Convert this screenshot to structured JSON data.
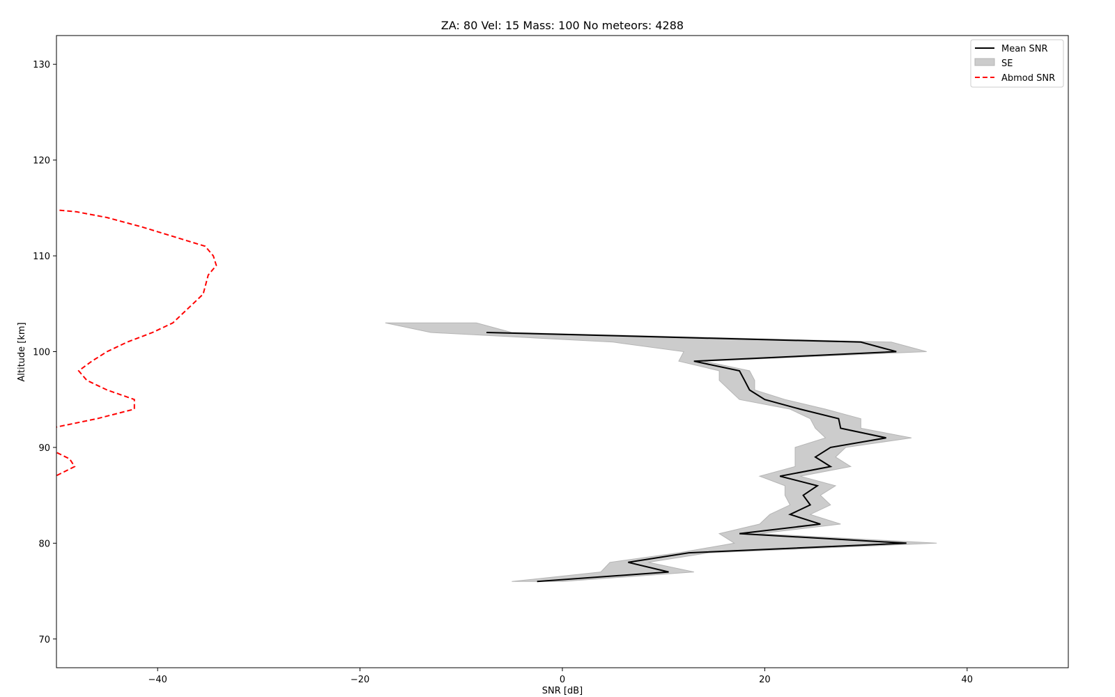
{
  "chart_data": {
    "type": "line",
    "title": "ZA: 80 Vel: 15 Mass: 100 No meteors: 4288",
    "xlabel": "SNR [dB]",
    "ylabel": "Altitude [km]",
    "xlim": [
      -50,
      50
    ],
    "ylim": [
      67,
      133
    ],
    "xticks": [
      -40,
      -20,
      0,
      20,
      40
    ],
    "yticks": [
      70,
      80,
      90,
      100,
      110,
      120,
      130
    ],
    "xtick_labels": [
      "−40",
      "−20",
      "0",
      "20",
      "40"
    ],
    "ytick_labels": [
      "70",
      "80",
      "90",
      "100",
      "110",
      "120",
      "130"
    ],
    "grid": false,
    "legend_position": "upper right",
    "legend": [
      {
        "label": "Mean SNR",
        "style": "line",
        "color": "#000000"
      },
      {
        "label": "SE",
        "style": "patch",
        "color": "#cccccc"
      },
      {
        "label": "Abmod SNR",
        "style": "dashed",
        "color": "#ff0000"
      }
    ],
    "series": [
      {
        "name": "Mean SNR",
        "color": "#000000",
        "points": [
          [
            -2.5,
            76
          ],
          [
            10.5,
            77
          ],
          [
            6.5,
            78
          ],
          [
            12.5,
            79
          ],
          [
            34,
            80
          ],
          [
            17.5,
            81
          ],
          [
            25.5,
            82
          ],
          [
            22.5,
            83
          ],
          [
            24.5,
            84
          ],
          [
            23.8,
            85
          ],
          [
            25.2,
            86
          ],
          [
            21.5,
            87
          ],
          [
            26.5,
            88
          ],
          [
            25,
            89
          ],
          [
            26.5,
            90
          ],
          [
            32,
            91
          ],
          [
            27.5,
            92
          ],
          [
            27.3,
            93
          ],
          [
            23.5,
            94
          ],
          [
            20,
            95
          ],
          [
            18.5,
            96
          ],
          [
            18,
            97
          ],
          [
            17.5,
            98
          ],
          [
            13,
            99
          ],
          [
            33,
            100
          ],
          [
            29.5,
            101
          ],
          [
            -7.5,
            102
          ]
        ]
      },
      {
        "name": "SE",
        "color": "#cccccc",
        "band": [
          [
            76,
            -5,
            0
          ],
          [
            77,
            3.8,
            13
          ],
          [
            78,
            4.7,
            8.5
          ],
          [
            79,
            11.5,
            14.5
          ],
          [
            80,
            17,
            37
          ],
          [
            81,
            15.5,
            19.5
          ],
          [
            82,
            19.5,
            27.5
          ],
          [
            83,
            20.5,
            24.5
          ],
          [
            84,
            22.5,
            26.5
          ],
          [
            85,
            22,
            25.5
          ],
          [
            86,
            22,
            27
          ],
          [
            87,
            19.5,
            23.5
          ],
          [
            88,
            23,
            28.5
          ],
          [
            89,
            23,
            27
          ],
          [
            90,
            23,
            28
          ],
          [
            91,
            26,
            34.5
          ],
          [
            92,
            25,
            29.5
          ],
          [
            93,
            24.5,
            29.5
          ],
          [
            94,
            22.5,
            26
          ],
          [
            95,
            17.5,
            22
          ],
          [
            96,
            16.5,
            19
          ],
          [
            97,
            15.5,
            19
          ],
          [
            98,
            15.5,
            18.5
          ],
          [
            99,
            11.5,
            14
          ],
          [
            100,
            12,
            36
          ],
          [
            101,
            5,
            32.5
          ],
          [
            102,
            -13,
            -5
          ],
          [
            103,
            -17.5,
            -8.5
          ]
        ]
      },
      {
        "name": "Abmod SNR",
        "color": "#ff0000",
        "points": [
          [
            -52,
            86
          ],
          [
            -48.2,
            88
          ],
          [
            -48.7,
            88.8
          ],
          [
            -51,
            90
          ],
          [
            -51.5,
            91.8
          ],
          [
            -46,
            93
          ],
          [
            -42.3,
            94
          ],
          [
            -42.3,
            95
          ],
          [
            -45,
            96
          ],
          [
            -47,
            97
          ],
          [
            -47.8,
            98
          ],
          [
            -46.5,
            99
          ],
          [
            -45,
            100
          ],
          [
            -43,
            101
          ],
          [
            -40.5,
            102
          ],
          [
            -38.5,
            103
          ],
          [
            -37.5,
            104
          ],
          [
            -35.5,
            106
          ],
          [
            -35,
            108
          ],
          [
            -34.2,
            109
          ],
          [
            -34.5,
            110
          ],
          [
            -35.3,
            111
          ],
          [
            -41.5,
            113
          ],
          [
            -45,
            114
          ],
          [
            -48,
            114.6
          ],
          [
            -52,
            115
          ]
        ]
      }
    ]
  }
}
